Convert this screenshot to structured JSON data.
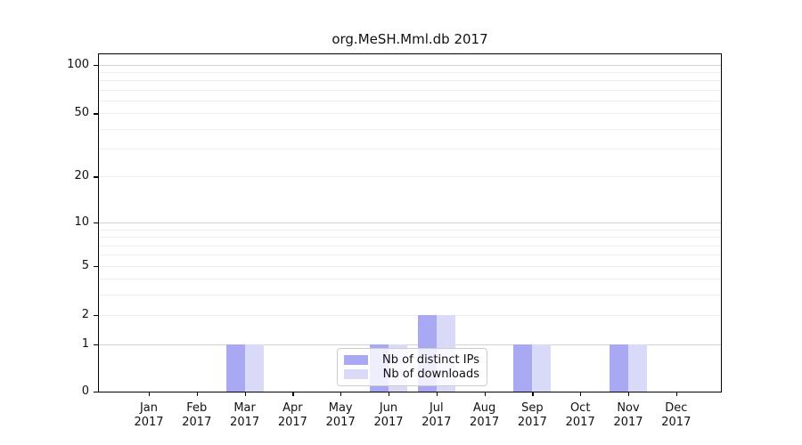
{
  "title": "org.MeSH.Mml.db 2017",
  "chart_data": {
    "type": "bar",
    "title": "org.MeSH.Mml.db 2017",
    "xlabel": "",
    "ylabel": "",
    "categories": [
      "Jan 2017",
      "Feb 2017",
      "Mar 2017",
      "Apr 2017",
      "May 2017",
      "Jun 2017",
      "Jul 2017",
      "Aug 2017",
      "Sep 2017",
      "Oct 2017",
      "Nov 2017",
      "Dec 2017"
    ],
    "series": [
      {
        "name": "Nb of distinct IPs",
        "color": "#a8a8f3",
        "values": [
          0,
          0,
          1,
          0,
          0,
          1,
          2,
          0,
          1,
          0,
          1,
          0
        ]
      },
      {
        "name": "Nb of downloads",
        "color": "#d9d9f8",
        "values": [
          0,
          0,
          1,
          0,
          0,
          1,
          2,
          0,
          1,
          0,
          1,
          0
        ]
      }
    ],
    "yscale": "log1p",
    "ylim": [
      0,
      115
    ],
    "y_tick_values": [
      0,
      1,
      2,
      5,
      10,
      20,
      50,
      100
    ],
    "y_minor_gridlines": [
      2,
      3,
      4,
      5,
      6,
      7,
      8,
      9,
      20,
      30,
      40,
      50,
      60,
      70,
      80,
      90
    ],
    "y_major_gridlines": [
      1,
      10,
      100
    ],
    "grid": "on",
    "legend_position": "lower center"
  },
  "legend": {
    "items": [
      "Nb of distinct IPs",
      "Nb of downloads"
    ]
  },
  "colors": {
    "distinct_ips": "#a8a8f3",
    "downloads": "#d9d9f8",
    "axis": "#000000",
    "major_grid": "#d2d2d2",
    "minor_grid": "#efefef",
    "legend_border": "#cccccc",
    "text": "#111111",
    "background": "#ffffff"
  }
}
